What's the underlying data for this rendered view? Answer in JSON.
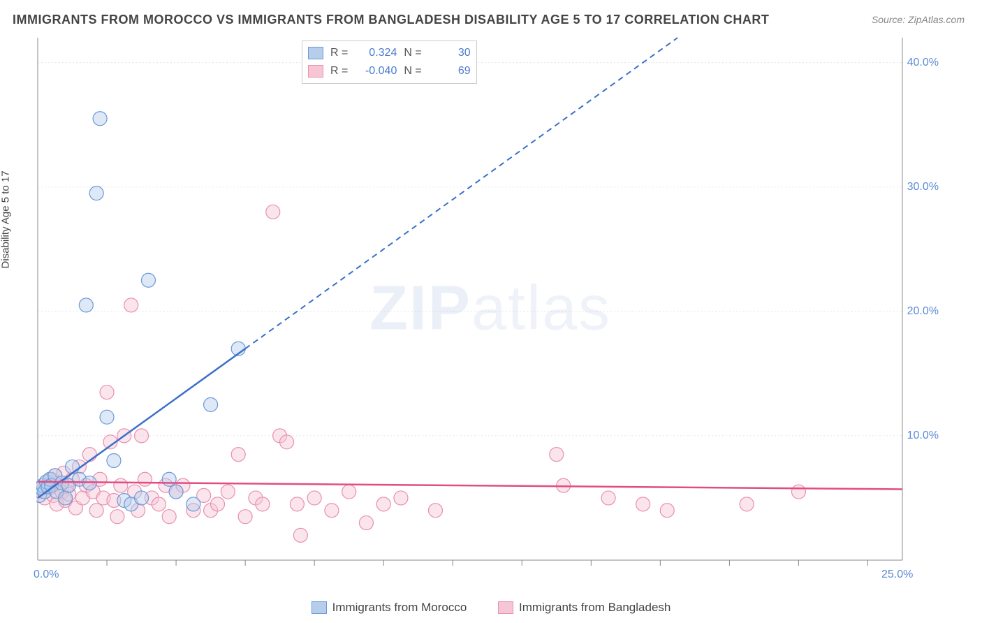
{
  "title": "IMMIGRANTS FROM MOROCCO VS IMMIGRANTS FROM BANGLADESH DISABILITY AGE 5 TO 17 CORRELATION CHART",
  "source": "Source: ZipAtlas.com",
  "ylabel": "Disability Age 5 to 17",
  "watermark_bold": "ZIP",
  "watermark_thin": "atlas",
  "chart": {
    "type": "scatter",
    "xlim": [
      0,
      25
    ],
    "ylim": [
      0,
      42
    ],
    "xtick_labels": [
      {
        "v": 0,
        "label": "0.0%"
      },
      {
        "v": 25,
        "label": "25.0%"
      }
    ],
    "xtick_marks": [
      2,
      4,
      6,
      8,
      10,
      12,
      14,
      16,
      18,
      20,
      22,
      24
    ],
    "ytick_labels": [
      {
        "v": 10,
        "label": "10.0%"
      },
      {
        "v": 20,
        "label": "20.0%"
      },
      {
        "v": 30,
        "label": "30.0%"
      },
      {
        "v": 40,
        "label": "40.0%"
      }
    ],
    "grid_color": "#e5e5e5",
    "axis_color": "#888888",
    "background_color": "#ffffff",
    "marker_radius": 10,
    "marker_opacity": 0.45,
    "marker_stroke_width": 1.2
  },
  "series": [
    {
      "name": "Immigrants from Morocco",
      "color_fill": "#b6cdec",
      "color_stroke": "#6a9ad8",
      "line_color": "#3b6fc9",
      "r_value": "0.324",
      "n_value": "30",
      "trend_solid": {
        "x1": 0,
        "y1": 5.0,
        "x2": 6.0,
        "y2": 17.0
      },
      "trend_dashed": {
        "x1": 6.0,
        "y1": 17.0,
        "x2": 18.5,
        "y2": 42.0
      },
      "points": [
        [
          0.05,
          5.2
        ],
        [
          0.1,
          5.8
        ],
        [
          0.15,
          6.0
        ],
        [
          0.2,
          5.5
        ],
        [
          0.25,
          6.3
        ],
        [
          0.3,
          5.9
        ],
        [
          0.35,
          6.5
        ],
        [
          0.4,
          6.0
        ],
        [
          0.5,
          6.8
        ],
        [
          0.55,
          5.5
        ],
        [
          0.7,
          6.2
        ],
        [
          0.8,
          5.0
        ],
        [
          0.9,
          6.0
        ],
        [
          1.0,
          7.5
        ],
        [
          1.2,
          6.5
        ],
        [
          1.4,
          20.5
        ],
        [
          1.5,
          6.2
        ],
        [
          1.7,
          29.5
        ],
        [
          1.8,
          35.5
        ],
        [
          2.0,
          11.5
        ],
        [
          2.2,
          8.0
        ],
        [
          2.5,
          4.8
        ],
        [
          2.7,
          4.5
        ],
        [
          3.0,
          5.0
        ],
        [
          3.2,
          22.5
        ],
        [
          3.8,
          6.5
        ],
        [
          4.5,
          4.5
        ],
        [
          5.0,
          12.5
        ],
        [
          5.8,
          17.0
        ],
        [
          4.0,
          5.5
        ]
      ]
    },
    {
      "name": "Immigrants from Bangladesh",
      "color_fill": "#f6c6d4",
      "color_stroke": "#e98fad",
      "line_color": "#e24d81",
      "r_value": "-0.040",
      "n_value": "69",
      "trend_solid": {
        "x1": 0,
        "y1": 6.3,
        "x2": 25,
        "y2": 5.7
      },
      "trend_dashed": null,
      "points": [
        [
          0.1,
          5.5
        ],
        [
          0.2,
          5.0
        ],
        [
          0.3,
          6.0
        ],
        [
          0.35,
          5.8
        ],
        [
          0.4,
          6.5
        ],
        [
          0.45,
          5.2
        ],
        [
          0.5,
          6.8
        ],
        [
          0.55,
          4.5
        ],
        [
          0.6,
          6.2
        ],
        [
          0.7,
          5.5
        ],
        [
          0.75,
          7.0
        ],
        [
          0.8,
          4.8
        ],
        [
          0.85,
          6.0
        ],
        [
          0.9,
          5.3
        ],
        [
          1.0,
          6.5
        ],
        [
          1.1,
          4.2
        ],
        [
          1.2,
          7.5
        ],
        [
          1.3,
          5.0
        ],
        [
          1.4,
          6.0
        ],
        [
          1.5,
          8.5
        ],
        [
          1.6,
          5.5
        ],
        [
          1.7,
          4.0
        ],
        [
          1.8,
          6.5
        ],
        [
          1.9,
          5.0
        ],
        [
          2.0,
          13.5
        ],
        [
          2.1,
          9.5
        ],
        [
          2.2,
          4.8
        ],
        [
          2.3,
          3.5
        ],
        [
          2.4,
          6.0
        ],
        [
          2.5,
          10.0
        ],
        [
          2.7,
          20.5
        ],
        [
          2.8,
          5.5
        ],
        [
          2.9,
          4.0
        ],
        [
          3.0,
          10.0
        ],
        [
          3.1,
          6.5
        ],
        [
          3.3,
          5.0
        ],
        [
          3.5,
          4.5
        ],
        [
          3.7,
          6.0
        ],
        [
          3.8,
          3.5
        ],
        [
          4.0,
          5.5
        ],
        [
          4.2,
          6.0
        ],
        [
          4.5,
          4.0
        ],
        [
          4.8,
          5.2
        ],
        [
          5.0,
          4.0
        ],
        [
          5.2,
          4.5
        ],
        [
          5.5,
          5.5
        ],
        [
          5.8,
          8.5
        ],
        [
          6.0,
          3.5
        ],
        [
          6.3,
          5.0
        ],
        [
          6.5,
          4.5
        ],
        [
          6.8,
          28.0
        ],
        [
          7.0,
          10.0
        ],
        [
          7.2,
          9.5
        ],
        [
          7.5,
          4.5
        ],
        [
          7.6,
          2.0
        ],
        [
          8.0,
          5.0
        ],
        [
          8.5,
          4.0
        ],
        [
          9.0,
          5.5
        ],
        [
          9.5,
          3.0
        ],
        [
          10.0,
          4.5
        ],
        [
          10.5,
          5.0
        ],
        [
          11.5,
          4.0
        ],
        [
          15.0,
          8.5
        ],
        [
          15.2,
          6.0
        ],
        [
          16.5,
          5.0
        ],
        [
          17.5,
          4.5
        ],
        [
          18.2,
          4.0
        ],
        [
          20.5,
          4.5
        ],
        [
          22.0,
          5.5
        ]
      ]
    }
  ],
  "stats_labels": {
    "r": "R =",
    "n": "N ="
  },
  "legend_bottom": [
    {
      "label": "Immigrants from Morocco",
      "fill": "#b6cdec",
      "stroke": "#6a9ad8"
    },
    {
      "label": "Immigrants from Bangladesh",
      "fill": "#f6c6d4",
      "stroke": "#e98fad"
    }
  ]
}
